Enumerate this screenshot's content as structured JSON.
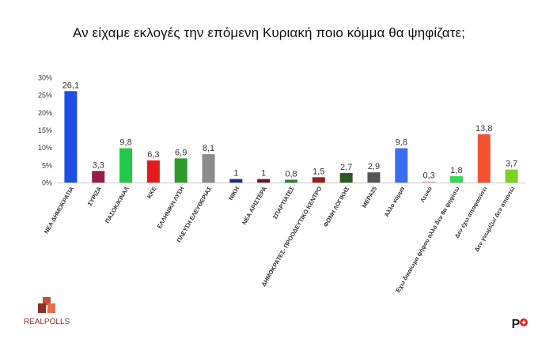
{
  "title": "Αν είχαμε εκλογές την επόμενη Κυριακή ποιο κόμμα θα ψηφίζατε;",
  "brand": {
    "left_logo_text": "REALPOLLS",
    "right_logo_text": "P"
  },
  "chart_data": {
    "type": "bar",
    "title": "Αν είχαμε εκλογές την επόμενη Κυριακή ποιο κόμμα θα ψηφίζατε;",
    "xlabel": "",
    "ylabel": "",
    "ylim": [
      0,
      30
    ],
    "yticks": [
      "0%",
      "5%",
      "10%",
      "15%",
      "20%",
      "25%",
      "30%"
    ],
    "grid": false,
    "legend": "none",
    "categories": [
      "ΝΕΑ ΔΗΜΟΚΡΑΤΙΑ",
      "ΣΥΡΙΖΑ",
      "ΠΑΣΟΚ/ΚΙΝΑΛ",
      "ΚΚΕ",
      "ΕΛΛΗΝΙΚΗ ΛΥΣΗ",
      "ΠΛΕΥΣΗ ΕΛΕΥΘΕΡΙΑΣ",
      "ΝΙΚΗ",
      "ΝΕΑ ΑΡΙΣΤΕΡΑ",
      "ΣΠΑΡΤΙΑΤΕΣ",
      "ΔΗΜΟΚΡΑΤΕΣ- ΠΡΟΟΔΕΥΤΙΚΟ ΚΕΝΤΡΟ",
      "ΦΩΝΗ ΛΟΓΙΚΗΣ",
      "ΜΕΡΑ25",
      "Άλλο κόμμα",
      "Λευκό",
      "Έχω δικαίωμα ψήφου αλλά δεν θα ψηφίσω",
      "Δεν έχω αποφασίσει",
      "Δεν γνωρίζω/ Δεν απαντώ"
    ],
    "values": [
      26.1,
      3.3,
      9.8,
      6.3,
      6.9,
      8.1,
      1,
      1,
      0.8,
      1.5,
      2.7,
      2.9,
      9.8,
      0.3,
      1.8,
      13.8,
      3.7
    ],
    "value_labels": [
      "26,1",
      "3,3",
      "9,8",
      "6,3",
      "6,9",
      "8,1",
      "1",
      "1",
      "0,8",
      "1,5",
      "2,7",
      "2,9",
      "9,8",
      "0,3",
      "1,8",
      "13,8",
      "3,7"
    ],
    "colors": [
      "#1f4fe0",
      "#9b1b4c",
      "#22c94a",
      "#e51b1b",
      "#2f9b2a",
      "#8c8c8c",
      "#1c2d8c",
      "#6e1424",
      "#2e7d2e",
      "#9c1c1c",
      "#2b5a1e",
      "#555555",
      "#3b6df0",
      "#e8a0b8",
      "#38d957",
      "#f45131",
      "#7ed321"
    ]
  }
}
